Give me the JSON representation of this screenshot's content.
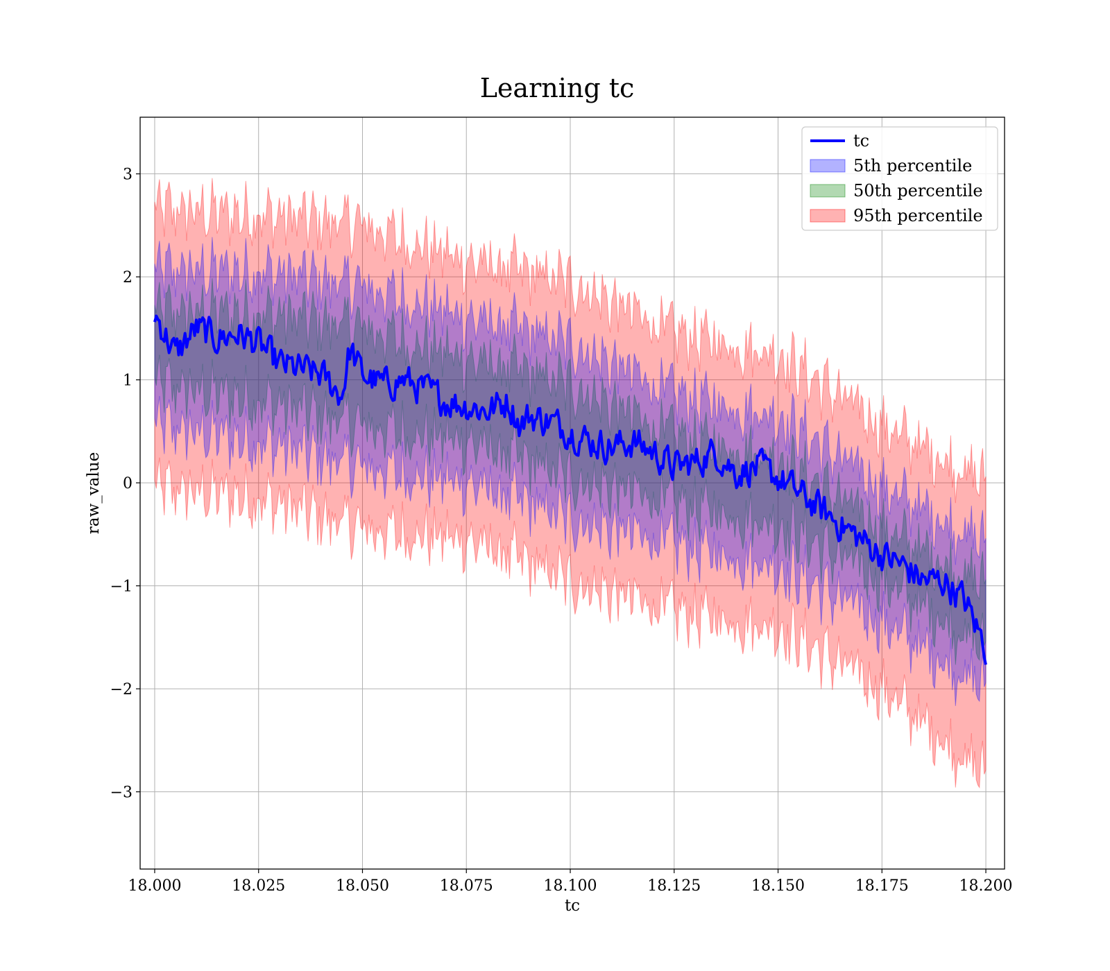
{
  "chart_data": {
    "type": "line",
    "title": "Learning tc",
    "xlabel": "tc",
    "ylabel": "raw_value",
    "xlim": [
      17.9965,
      18.2045
    ],
    "ylim": [
      -3.75,
      3.55
    ],
    "xticks": [
      18.0,
      18.025,
      18.05,
      18.075,
      18.1,
      18.125,
      18.15,
      18.175,
      18.2
    ],
    "xtick_labels": [
      "18.000",
      "18.025",
      "18.050",
      "18.075",
      "18.100",
      "18.125",
      "18.150",
      "18.175",
      "18.200"
    ],
    "yticks": [
      -3,
      -2,
      -1,
      0,
      1,
      2,
      3
    ],
    "ytick_labels": [
      "−3",
      "−2",
      "−1",
      "0",
      "1",
      "2",
      "3"
    ],
    "grid": true,
    "legend_position": "top-right",
    "series": [
      {
        "name": "tc",
        "kind": "line",
        "color": "#0000ff",
        "x": [
          18.0,
          18.005,
          18.01,
          18.015,
          18.02,
          18.025,
          18.03,
          18.035,
          18.04,
          18.045,
          18.047,
          18.05,
          18.055,
          18.06,
          18.065,
          18.07,
          18.075,
          18.08,
          18.085,
          18.088,
          18.09,
          18.095,
          18.1,
          18.105,
          18.11,
          18.115,
          18.12,
          18.125,
          18.13,
          18.135,
          18.14,
          18.145,
          18.15,
          18.155,
          18.16,
          18.165,
          18.17,
          18.175,
          18.18,
          18.185,
          18.19,
          18.195,
          18.2
        ],
        "y": [
          1.65,
          1.25,
          1.5,
          1.4,
          1.45,
          1.35,
          1.15,
          1.1,
          1.05,
          0.85,
          1.3,
          1.05,
          0.95,
          1.0,
          0.9,
          0.8,
          0.75,
          0.7,
          0.8,
          0.55,
          0.65,
          0.6,
          0.5,
          0.4,
          0.35,
          0.4,
          0.3,
          0.15,
          0.2,
          0.3,
          0.1,
          0.15,
          0.05,
          -0.1,
          -0.25,
          -0.4,
          -0.55,
          -0.7,
          -0.8,
          -0.95,
          -0.95,
          -1.15,
          -1.6
        ]
      },
      {
        "name": "5th percentile",
        "kind": "band",
        "color": "#0000ff",
        "opacity": 0.3,
        "x": [
          18.0,
          18.025,
          18.05,
          18.075,
          18.1,
          18.125,
          18.15,
          18.175,
          18.2
        ],
        "lower": [
          0.55,
          0.4,
          0.15,
          0.0,
          -0.35,
          -0.6,
          -0.8,
          -1.35,
          -2.0
        ],
        "upper": [
          2.05,
          2.05,
          1.9,
          1.6,
          1.35,
          0.85,
          0.65,
          -0.05,
          -0.6
        ]
      },
      {
        "name": "50th percentile",
        "kind": "band",
        "color": "#008000",
        "opacity": 0.3,
        "x": [
          18.0,
          18.025,
          18.05,
          18.075,
          18.1,
          18.125,
          18.15,
          18.175,
          18.2
        ],
        "lower": [
          0.95,
          0.8,
          0.55,
          0.4,
          0.05,
          -0.2,
          -0.4,
          -0.95,
          -1.6
        ],
        "upper": [
          1.65,
          1.65,
          1.5,
          1.2,
          0.95,
          0.45,
          0.25,
          -0.45,
          -1.0
        ]
      },
      {
        "name": "95th percentile",
        "kind": "band",
        "color": "#ff0000",
        "opacity": 0.3,
        "x": [
          18.0,
          18.025,
          18.05,
          18.075,
          18.1,
          18.125,
          18.15,
          18.175,
          18.2
        ],
        "lower": [
          -0.05,
          -0.15,
          -0.45,
          -0.55,
          -0.95,
          -1.25,
          -1.4,
          -2.0,
          -2.85
        ],
        "upper": [
          2.65,
          2.6,
          2.5,
          2.15,
          1.95,
          1.45,
          1.25,
          0.55,
          0.0
        ]
      }
    ]
  }
}
